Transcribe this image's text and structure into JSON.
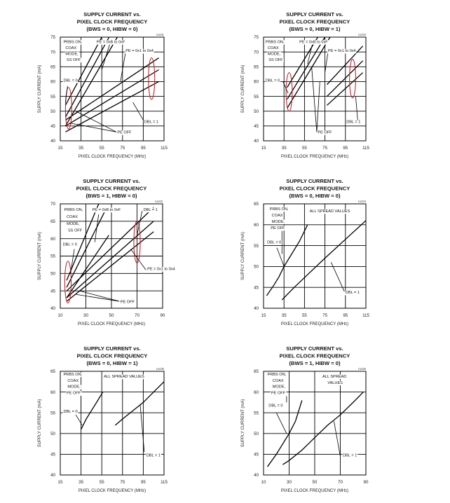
{
  "chart_data": [
    {
      "type": "line",
      "id": "toc01",
      "code": "toc01",
      "title": [
        "SUPPLY CURRENT vs.",
        "PIXEL CLOCK FREQUENCY",
        "(BWS = 0, HIBW = 0)"
      ],
      "xlabel": "PIXEL CLOCK FREQUENCY (MHz)",
      "ylabel": "SUPPLY CURRENT (mA)",
      "xlim": [
        15,
        115
      ],
      "ylim": [
        40,
        75
      ],
      "xticks": [
        15,
        35,
        55,
        75,
        95,
        115
      ],
      "yticks": [
        40,
        45,
        50,
        55,
        60,
        65,
        70,
        75
      ],
      "series": [
        {
          "name": "DBL=0 PE=0x1 to 0x4",
          "x": [
            20,
            62
          ],
          "y": [
            48,
            75
          ]
        },
        {
          "name": "DBL=0 PE=0xB to 0xF",
          "x": [
            20,
            55
          ],
          "y": [
            52,
            75
          ]
        },
        {
          "name": "DBL=0 PE OFF",
          "x": [
            20,
            70
          ],
          "y": [
            45,
            75
          ]
        },
        {
          "name": "DBL=1 PE=0xB to 0xF",
          "x": [
            20,
            110
          ],
          "y": [
            47,
            68
          ]
        },
        {
          "name": "DBL=1 PE=0x1 to 0x4",
          "x": [
            20,
            110
          ],
          "y": [
            45,
            64
          ]
        },
        {
          "name": "DBL=1 PE OFF",
          "x": [
            20,
            110
          ],
          "y": [
            43,
            60
          ]
        }
      ],
      "annotations": [
        {
          "text": "PRBS ON,",
          "x": 18,
          "y": 73
        },
        {
          "text": "COAX",
          "x": 20,
          "y": 71
        },
        {
          "text": "MODE,",
          "x": 20,
          "y": 69
        },
        {
          "text": "SS OFF",
          "x": 21,
          "y": 67
        },
        {
          "text": "PE = 0xB to 0xF",
          "x": 50,
          "y": 73
        },
        {
          "text": "PE = 0x1 to 0x4",
          "x": 78,
          "y": 70
        },
        {
          "text": "DBL = 0",
          "x": 18,
          "y": 60
        },
        {
          "text": "DBL = 1",
          "x": 96,
          "y": 46
        },
        {
          "text": "PE OFF",
          "x": 70,
          "y": 42.5
        }
      ],
      "leaders": [
        {
          "from": [
            63,
            73
          ],
          "to": [
            55,
            64
          ]
        },
        {
          "from": [
            78,
            70
          ],
          "to": [
            73,
            60
          ]
        },
        {
          "from": [
            22,
            58.5
          ],
          "to": [
            20,
            53
          ]
        },
        {
          "from": [
            95,
            47
          ],
          "to": [
            85,
            53
          ]
        },
        {
          "from": [
            69,
            43
          ],
          "to": [
            24,
            46
          ]
        },
        {
          "from": [
            69,
            43
          ],
          "to": [
            30,
            50
          ]
        }
      ],
      "ovals": [
        {
          "cx": 23,
          "cy": 51,
          "rx": 3,
          "ry": 7
        },
        {
          "cx": 103,
          "cy": 61,
          "rx": 3,
          "ry": 7
        }
      ]
    },
    {
      "type": "line",
      "id": "toc02",
      "code": "toc02",
      "title": [
        "SUPPLY CURRENT vs.",
        "PIXEL CLOCK FREQUENCY",
        "(BWS = 0, HIBW = 1)"
      ],
      "xlabel": "PIXEL CLOCK FREQUENCY (MHz)",
      "ylabel": "SUPPLY CURRENT (mA)",
      "xlim": [
        15,
        115
      ],
      "ylim": [
        40,
        75
      ],
      "xticks": [
        15,
        35,
        55,
        75,
        95,
        115
      ],
      "yticks": [
        40,
        45,
        50,
        55,
        60,
        65,
        70,
        75
      ],
      "series": [
        {
          "name": "DBL=0 PE=0x1 to 0x4",
          "x": [
            38,
            75
          ],
          "y": [
            54,
            75
          ]
        },
        {
          "name": "DBL=0 PE=0xB to 0xF",
          "x": [
            38,
            68
          ],
          "y": [
            58,
            75
          ]
        },
        {
          "name": "DBL=0 PE OFF",
          "x": [
            38,
            80
          ],
          "y": [
            51,
            75
          ]
        },
        {
          "name": "DBL=1 PE=0xB to 0xF",
          "x": [
            77,
            112
          ],
          "y": [
            59,
            72
          ]
        },
        {
          "name": "DBL=1 PE=0x1 to 0x4",
          "x": [
            77,
            112
          ],
          "y": [
            55,
            67
          ]
        },
        {
          "name": "DBL=1 PE OFF",
          "x": [
            77,
            112
          ],
          "y": [
            52,
            63
          ]
        }
      ],
      "annotations": [
        {
          "text": "PRBS ON,",
          "x": 17,
          "y": 73
        },
        {
          "text": "COAX",
          "x": 19,
          "y": 71
        },
        {
          "text": "MODE,",
          "x": 19,
          "y": 69
        },
        {
          "text": "SS OFF",
          "x": 20,
          "y": 67
        },
        {
          "text": "PE = 0xB to 0xF",
          "x": 50,
          "y": 73
        },
        {
          "text": "PE = 0x1 to 0x4",
          "x": 78,
          "y": 70
        },
        {
          "text": "DBL = 0",
          "x": 17,
          "y": 60
        },
        {
          "text": "DBL = 1",
          "x": 96,
          "y": 46
        },
        {
          "text": "PE OFF",
          "x": 68,
          "y": 42.5
        }
      ],
      "leaders": [
        {
          "from": [
            63,
            73
          ],
          "to": [
            58,
            66
          ]
        },
        {
          "from": [
            78,
            70
          ],
          "to": [
            75,
            63
          ]
        },
        {
          "from": [
            34,
            60
          ],
          "to": [
            39,
            56
          ]
        },
        {
          "from": [
            107,
            47
          ],
          "to": [
            105,
            55
          ]
        },
        {
          "from": [
            67,
            43
          ],
          "to": [
            62,
            65
          ]
        },
        {
          "from": [
            67,
            43
          ],
          "to": [
            70,
            60
          ]
        }
      ],
      "ovals": [
        {
          "cx": 40,
          "cy": 56.5,
          "rx": 3,
          "ry": 6.5
        },
        {
          "cx": 102,
          "cy": 61,
          "rx": 3,
          "ry": 6.5
        }
      ]
    },
    {
      "type": "line",
      "id": "toc03",
      "code": "toc03",
      "title": [
        "SUPPLY CURRENT vs.",
        "PIXEL CLOCK FREQUENCY",
        "(BWS = 1, HIBW = 0)"
      ],
      "xlabel": "PIXEL CLOCK FREQUENCY (MHz)",
      "ylabel": "SUPPLY CURRENT (mA)",
      "xlim": [
        10,
        90
      ],
      "ylim": [
        40,
        70
      ],
      "xticks": [
        10,
        30,
        50,
        70,
        90
      ],
      "yticks": [
        40,
        45,
        50,
        55,
        60,
        65,
        70
      ],
      "series": [
        {
          "name": "DBL=0 PE=0xB to 0xF",
          "x": [
            15,
            40
          ],
          "y": [
            48,
            70
          ]
        },
        {
          "name": "DBL=0 PE=0x1 to 0x4",
          "x": [
            15,
            45
          ],
          "y": [
            46,
            68
          ]
        },
        {
          "name": "DBL=0 PE OFF",
          "x": [
            15,
            48
          ],
          "y": [
            43,
            61
          ]
        },
        {
          "name": "DBL=1 PE=0xB to 0xF",
          "x": [
            15,
            83
          ],
          "y": [
            45,
            69
          ]
        },
        {
          "name": "DBL=1 PE=0x1 to 0x4",
          "x": [
            15,
            83
          ],
          "y": [
            43,
            65
          ]
        },
        {
          "name": "DBL=1 PE OFF",
          "x": [
            15,
            83
          ],
          "y": [
            42,
            62
          ]
        }
      ],
      "annotations": [
        {
          "text": "PRBS ON,",
          "x": 13,
          "y": 68
        },
        {
          "text": "COAX",
          "x": 15,
          "y": 66
        },
        {
          "text": "MODE,",
          "x": 15,
          "y": 64
        },
        {
          "text": "SS OFF",
          "x": 16,
          "y": 62
        },
        {
          "text": "PE = 0xB to 0xF",
          "x": 35,
          "y": 68
        },
        {
          "text": "DBL = 1",
          "x": 75,
          "y": 68
        },
        {
          "text": "DBL = 0",
          "x": 12,
          "y": 58
        },
        {
          "text": "PE = 0x1 to 0x4",
          "x": 78,
          "y": 51
        },
        {
          "text": "PE OFF",
          "x": 57,
          "y": 41.5
        }
      ],
      "leaders": [
        {
          "from": [
            40,
            67
          ],
          "to": [
            37,
            59
          ]
        },
        {
          "from": [
            74,
            68
          ],
          "to": [
            70,
            61
          ]
        },
        {
          "from": [
            21,
            57
          ],
          "to": [
            18,
            50
          ]
        },
        {
          "from": [
            77,
            51
          ],
          "to": [
            65,
            57
          ]
        },
        {
          "from": [
            56,
            42
          ],
          "to": [
            22,
            44
          ]
        },
        {
          "from": [
            56,
            42
          ],
          "to": [
            25,
            45
          ]
        }
      ],
      "ovals": [
        {
          "cx": 16,
          "cy": 47.5,
          "rx": 2.5,
          "ry": 6
        },
        {
          "cx": 70,
          "cy": 59,
          "rx": 2.5,
          "ry": 6
        }
      ]
    },
    {
      "type": "line",
      "id": "toc04",
      "code": "toc04",
      "title": [
        "SUPPLY CURRENT vs.",
        "PIXEL CLOCK FREQUENCY",
        "(BWS = 0, HIBW = 0)"
      ],
      "xlabel": "PIXEL CLOCK FREQUENCY (MHz)",
      "ylabel": "SUPPLY CURRENT (mA)",
      "xlim": [
        15,
        115
      ],
      "ylim": [
        40,
        65
      ],
      "xticks": [
        15,
        35,
        55,
        75,
        95,
        115
      ],
      "yticks": [
        40,
        45,
        50,
        55,
        60,
        65
      ],
      "series": [
        {
          "name": "DBL=0",
          "x": [
            18,
            25,
            30,
            35,
            40,
            50,
            58
          ],
          "y": [
            43,
            45.5,
            47.5,
            50,
            52,
            56,
            60
          ]
        },
        {
          "name": "DBL=1",
          "x": [
            33,
            37,
            45,
            60,
            75,
            95,
            115
          ],
          "y": [
            42,
            43,
            45,
            48.5,
            52,
            56.5,
            61
          ]
        }
      ],
      "annotations": [
        {
          "text": "PRBS ON,",
          "x": 21,
          "y": 63.5
        },
        {
          "text": "COAX",
          "x": 23,
          "y": 62
        },
        {
          "text": "MODE,",
          "x": 23,
          "y": 60.5
        },
        {
          "text": "PE OFF",
          "x": 22,
          "y": 59
        },
        {
          "text": "ALL SPREAD VALUES",
          "x": 60,
          "y": 63
        },
        {
          "text": "DBL = 0",
          "x": 18.5,
          "y": 55.5
        },
        {
          "text": "DBL = 1",
          "x": 95,
          "y": 43.5
        }
      ],
      "leaders": [
        {
          "from": [
            33,
            58.5
          ],
          "to": [
            33,
            53
          ]
        },
        {
          "from": [
            28,
            54.5
          ],
          "to": [
            35,
            50
          ]
        },
        {
          "from": [
            94,
            44
          ],
          "to": [
            81,
            51
          ]
        }
      ],
      "ovals": []
    },
    {
      "type": "line",
      "id": "toc05",
      "code": "toc05",
      "title": [
        "SUPPLY CURRENT vs.",
        "PIXEL CLOCK FREQUENCY",
        "(BWS = 0, HIBW = 1)"
      ],
      "xlabel": "PIXEL CLOCK FREQUENCY (MHz)",
      "ylabel": "SUPPLY CURRENT (mA)",
      "xlim": [
        15,
        115
      ],
      "ylim": [
        40,
        65
      ],
      "xticks": [
        15,
        35,
        55,
        75,
        95,
        115
      ],
      "yticks": [
        40,
        45,
        50,
        55,
        60,
        65
      ],
      "series": [
        {
          "name": "DBL=0",
          "x": [
            35,
            40,
            45,
            50,
            56
          ],
          "y": [
            51,
            53.5,
            55.5,
            57.5,
            60
          ]
        },
        {
          "name": "DBL=1",
          "x": [
            68,
            75,
            85,
            95,
            105,
            115
          ],
          "y": [
            52,
            53.5,
            55.5,
            57.5,
            60,
            62.5
          ]
        }
      ],
      "annotations": [
        {
          "text": "PRBS ON,",
          "x": 18,
          "y": 64
        },
        {
          "text": "COAX",
          "x": 22,
          "y": 62.5
        },
        {
          "text": "MODE,",
          "x": 22,
          "y": 61
        },
        {
          "text": "PE OFF",
          "x": 21,
          "y": 59.5
        },
        {
          "text": "ALL SPREAD VALUES",
          "x": 57,
          "y": 63.5
        },
        {
          "text": "DBL = 0",
          "x": 18,
          "y": 55
        },
        {
          "text": "DBL = 1",
          "x": 98,
          "y": 44.5
        }
      ],
      "leaders": [
        {
          "from": [
            35,
            59
          ],
          "to": [
            35,
            55
          ]
        },
        {
          "from": [
            30,
            54.5
          ],
          "to": [
            36,
            52
          ]
        },
        {
          "from": [
            96,
            45.5
          ],
          "to": [
            92,
            57
          ]
        }
      ],
      "ovals": []
    },
    {
      "type": "line",
      "id": "toc06",
      "code": "toc06",
      "title": [
        "SUPPLY CURRENT vs.",
        "PIXEL CLOCK FREQUENCY",
        "(BWS = 1, HIBW = 0)"
      ],
      "xlabel": "PIXEL CLOCK FREQUENCY (MHz)",
      "ylabel": "SUPPLY CURRENT (mA)",
      "xlim": [
        10,
        90
      ],
      "ylim": [
        40,
        65
      ],
      "xticks": [
        10,
        30,
        50,
        70,
        90
      ],
      "yticks": [
        40,
        45,
        50,
        55,
        60,
        65
      ],
      "series": [
        {
          "name": "DBL=0",
          "x": [
            13,
            20,
            25,
            30,
            35,
            40
          ],
          "y": [
            42,
            45,
            47.5,
            50,
            53,
            58
          ]
        },
        {
          "name": "DBL=1",
          "x": [
            25,
            30,
            40,
            50,
            60,
            70,
            80,
            88
          ],
          "y": [
            42.5,
            43.5,
            46,
            49,
            52,
            54.5,
            57.5,
            60
          ]
        }
      ],
      "annotations": [
        {
          "text": "PRBS ON,",
          "x": 13,
          "y": 64
        },
        {
          "text": "COAX",
          "x": 17,
          "y": 62.5
        },
        {
          "text": "MODE,",
          "x": 17,
          "y": 61
        },
        {
          "text": "PE OFF",
          "x": 16,
          "y": 59.5
        },
        {
          "text": "ALL SPREAD",
          "x": 56,
          "y": 63.5
        },
        {
          "text": "VALUES",
          "x": 60,
          "y": 62
        },
        {
          "text": "DBL = 0",
          "x": 14,
          "y": 56.5
        },
        {
          "text": "DBL = 1",
          "x": 72,
          "y": 44.5
        }
      ],
      "leaders": [
        {
          "from": [
            28,
            59
          ],
          "to": [
            28,
            57.5
          ]
        },
        {
          "from": [
            20,
            55
          ],
          "to": [
            28,
            50
          ]
        },
        {
          "from": [
            70,
            44.5
          ],
          "to": [
            65,
            53
          ]
        }
      ],
      "ovals": []
    }
  ]
}
